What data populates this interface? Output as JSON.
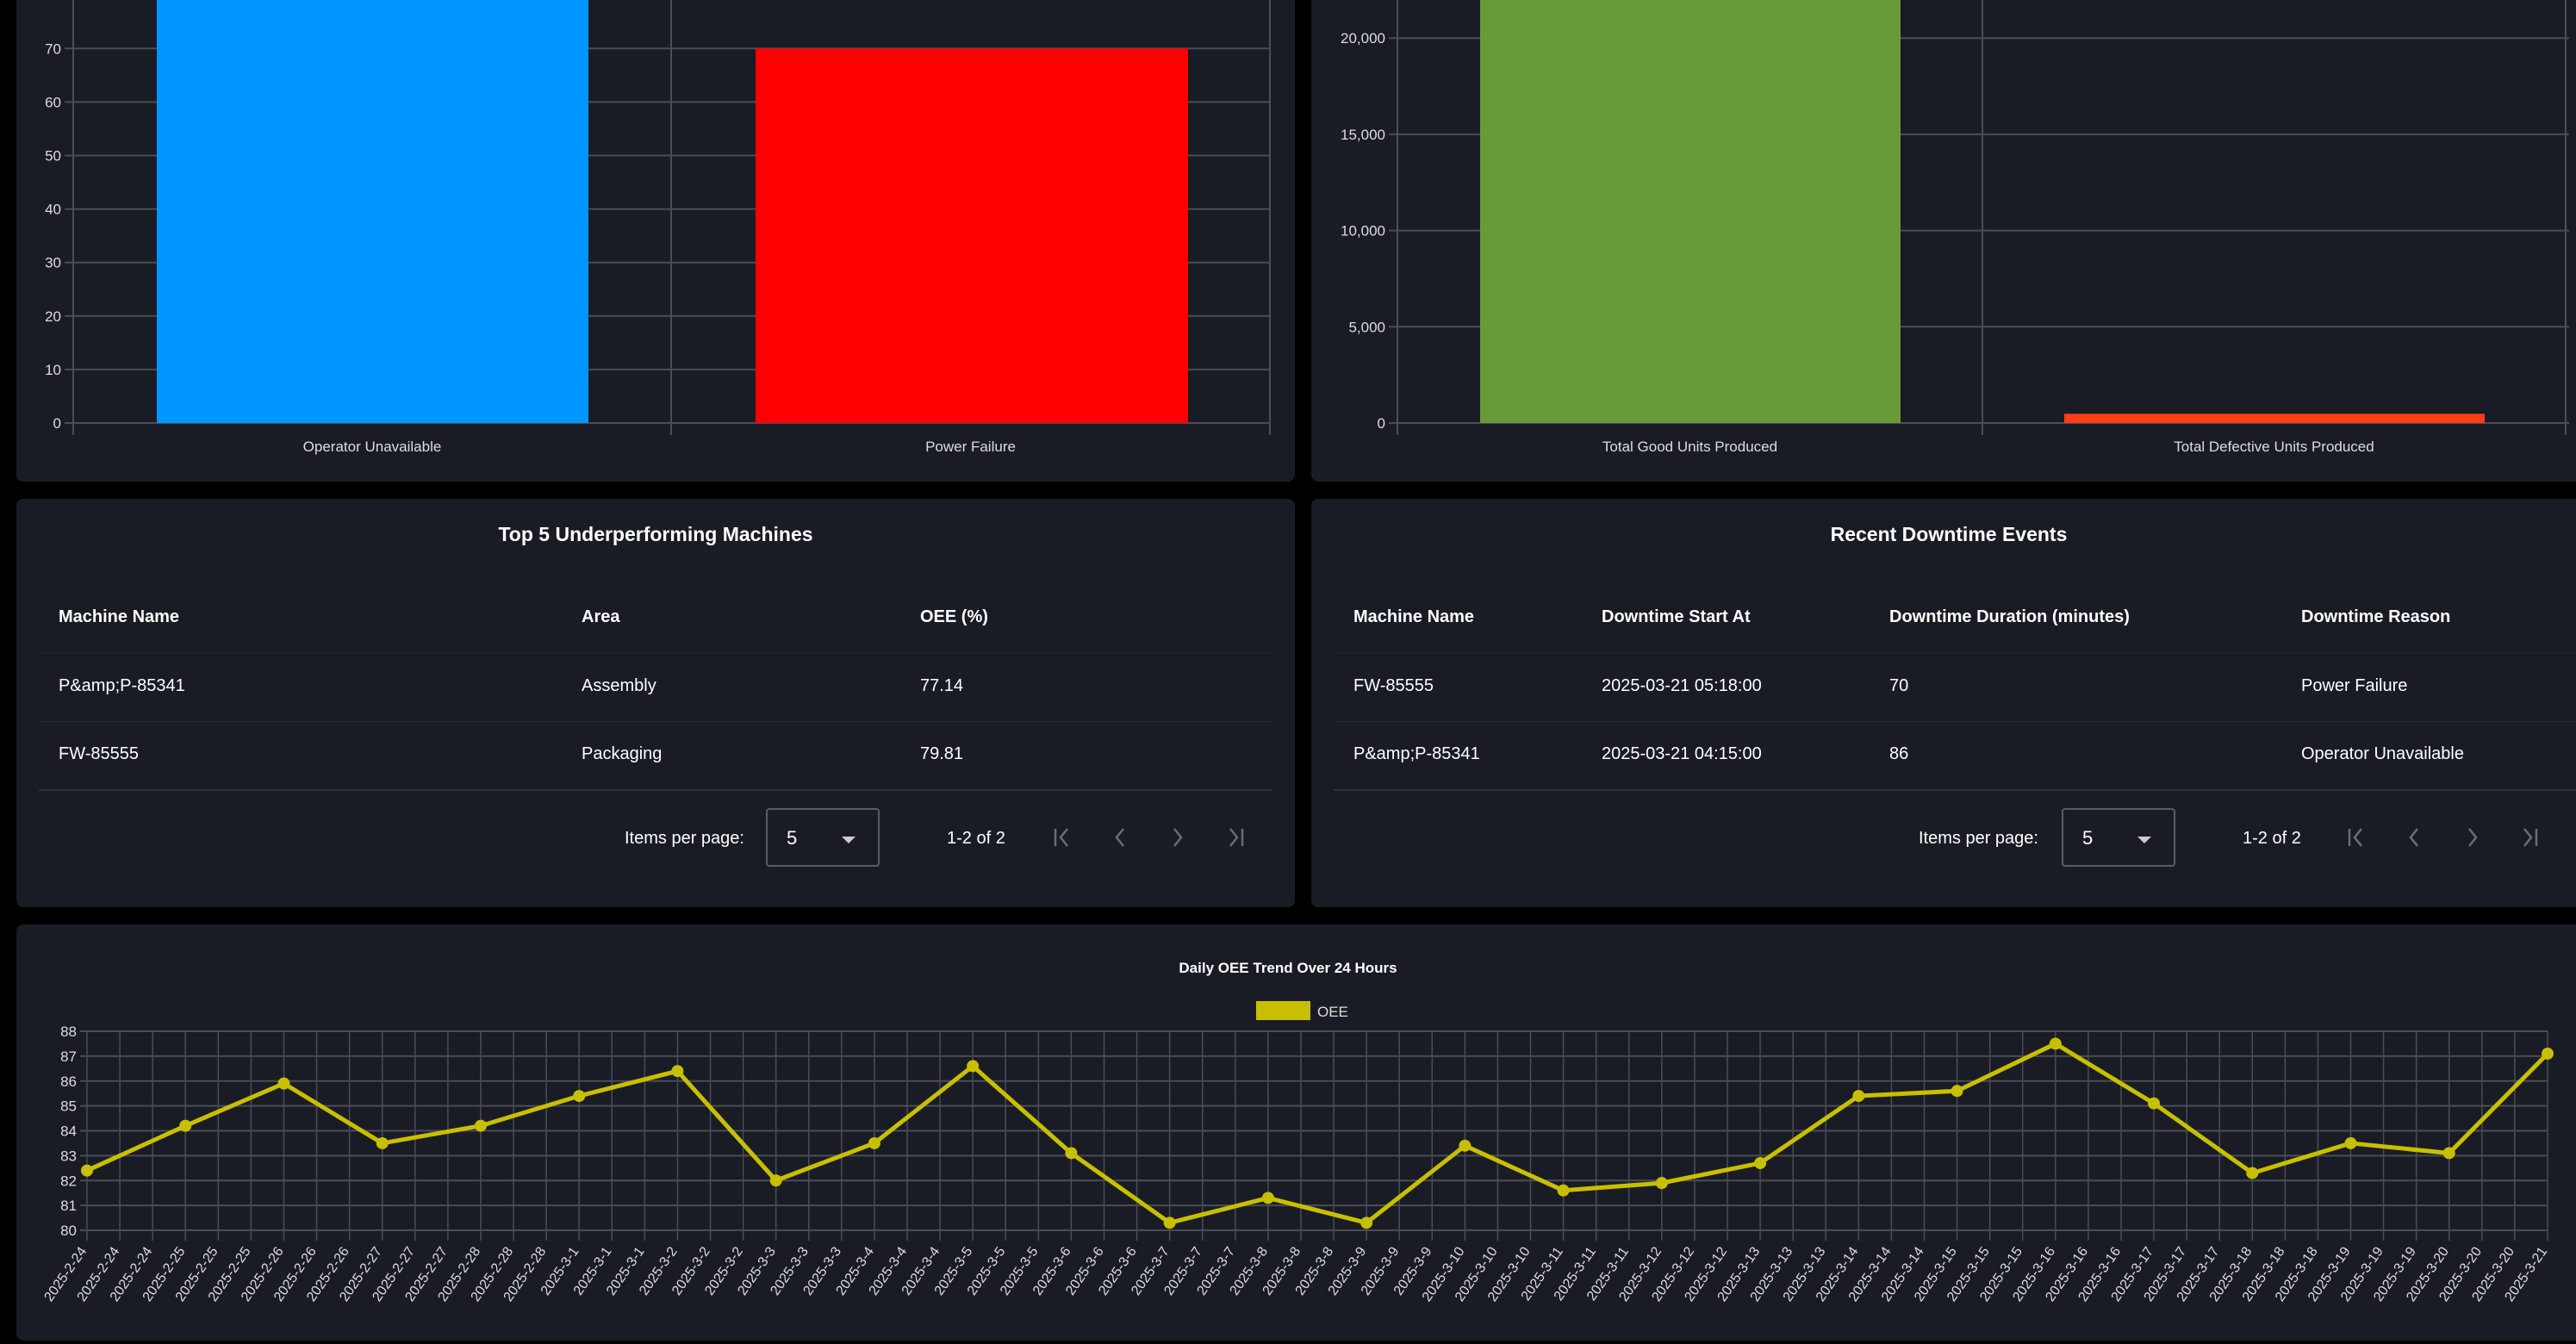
{
  "colors": {
    "panel": "#1a1c25",
    "grid": "#4a4d55",
    "axis_text": "#dddddd",
    "line": "#c8bf00"
  },
  "charts": {
    "downtime_by_reason": {
      "type": "bar",
      "categories": [
        "Operator Unavailable",
        "Power Failure"
      ],
      "values": [
        86,
        70
      ],
      "colors": [
        "#0096ff",
        "#ff0000"
      ],
      "y_ticks": [
        "0",
        "10",
        "20",
        "30",
        "40",
        "50",
        "60",
        "70"
      ],
      "y_tick_values": [
        0,
        10,
        20,
        30,
        40,
        50,
        60,
        70
      ]
    },
    "units_produced": {
      "type": "bar",
      "categories": [
        "Total Good Units Produced",
        "Total Defective Units Produced"
      ],
      "values": [
        null,
        480
      ],
      "colors": [
        "#689b38",
        "#ff3c14"
      ],
      "y_ticks": [
        "0",
        "5,000",
        "10,000",
        "15,000",
        "20,000"
      ],
      "y_tick_values": [
        0,
        5000,
        10000,
        15000,
        20000
      ]
    }
  },
  "tables": {
    "underperforming": {
      "title": "Top 5 Underperforming Machines",
      "headers": [
        "Machine Name",
        "Area",
        "OEE (%)"
      ],
      "rows": [
        [
          "P&amp;P-85341",
          "Assembly",
          "77.14"
        ],
        [
          "FW-85555",
          "Packaging",
          "79.81"
        ]
      ],
      "items_per_page_label": "Items per page:",
      "items_per_page": "5",
      "range": "1-2 of 2"
    },
    "downtime": {
      "title": "Recent Downtime Events",
      "headers": [
        "Machine Name",
        "Downtime Start At",
        "Downtime Duration (minutes)",
        "Downtime Reason"
      ],
      "rows": [
        [
          "FW-85555",
          "2025-03-21 05:18:00",
          "70",
          "Power Failure"
        ],
        [
          "P&amp;P-85341",
          "2025-03-21 04:15:00",
          "86",
          "Operator Unavailable"
        ]
      ],
      "items_per_page_label": "Items per page:",
      "items_per_page": "5",
      "range": "1-2 of 2"
    }
  },
  "chart_data": {
    "type": "line",
    "title": "Daily OEE Trend Over 24 Hours",
    "legend": [
      "OEE"
    ],
    "legend_placement": "top",
    "grid": true,
    "ylim": [
      80,
      88
    ],
    "y_ticks": [
      "80",
      "81",
      "82",
      "83",
      "84",
      "85",
      "86",
      "87",
      "88"
    ],
    "x": [
      "2025-2-24",
      "2025-2-25",
      "2025-2-26",
      "2025-2-27",
      "2025-2-28",
      "2025-3-1",
      "2025-3-2",
      "2025-3-3",
      "2025-3-4",
      "2025-3-5",
      "2025-3-6",
      "2025-3-7",
      "2025-3-8",
      "2025-3-9",
      "2025-3-10",
      "2025-3-11",
      "2025-3-12",
      "2025-3-13",
      "2025-3-14",
      "2025-3-15",
      "2025-3-16",
      "2025-3-17",
      "2025-3-18",
      "2025-3-19",
      "2025-3-20",
      "2025-3-21"
    ],
    "series": [
      {
        "name": "OEE",
        "color": "#c8bf00",
        "values": [
          82.4,
          84.2,
          85.9,
          83.5,
          84.2,
          85.4,
          86.4,
          82.0,
          83.5,
          86.6,
          83.1,
          80.3,
          81.3,
          80.3,
          83.4,
          81.6,
          81.9,
          82.7,
          85.4,
          85.6,
          87.5,
          85.1,
          82.3,
          83.5,
          83.1,
          87.1
        ]
      }
    ],
    "x_tick_labels": [
      "2025-2-24",
      "2025-2-24",
      "2025-2-24",
      "2025-2-25",
      "2025-2-25",
      "2025-2-25",
      "2025-2-26",
      "2025-2-26",
      "2025-2-26",
      "2025-2-27",
      "2025-2-27",
      "2025-2-27",
      "2025-2-28",
      "2025-2-28",
      "2025-2-28",
      "2025-3-1",
      "2025-3-1",
      "2025-3-1",
      "2025-3-2",
      "2025-3-2",
      "2025-3-2",
      "2025-3-3",
      "2025-3-3",
      "2025-3-3",
      "2025-3-4",
      "2025-3-4",
      "2025-3-4",
      "2025-3-5",
      "2025-3-5",
      "2025-3-5",
      "2025-3-6",
      "2025-3-6",
      "2025-3-6",
      "2025-3-7",
      "2025-3-7",
      "2025-3-7",
      "2025-3-8",
      "2025-3-8",
      "2025-3-8",
      "2025-3-9",
      "2025-3-9",
      "2025-3-9",
      "2025-3-10",
      "2025-3-10",
      "2025-3-10",
      "2025-3-11",
      "2025-3-11",
      "2025-3-11",
      "2025-3-12",
      "2025-3-12",
      "2025-3-12",
      "2025-3-13",
      "2025-3-13",
      "2025-3-13",
      "2025-3-14",
      "2025-3-14",
      "2025-3-14",
      "2025-3-15",
      "2025-3-15",
      "2025-3-15",
      "2025-3-16",
      "2025-3-16",
      "2025-3-16",
      "2025-3-17",
      "2025-3-17",
      "2025-3-17",
      "2025-3-18",
      "2025-3-18",
      "2025-3-18",
      "2025-3-19",
      "2025-3-19",
      "2025-3-19",
      "2025-3-20",
      "2025-3-20",
      "2025-3-20",
      "2025-3-21"
    ]
  }
}
